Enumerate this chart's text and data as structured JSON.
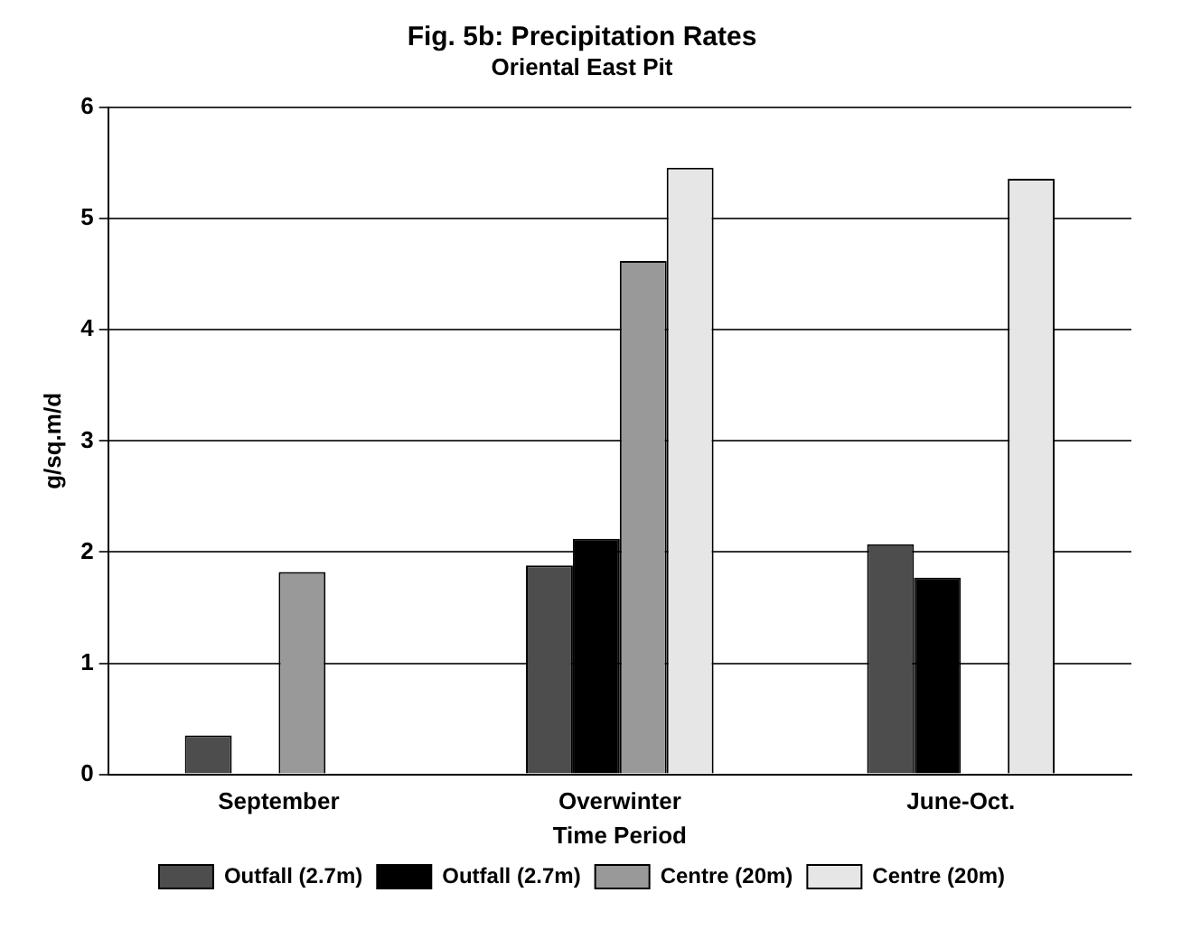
{
  "chart_data": {
    "type": "bar",
    "title": "Fig. 5b: Precipitation Rates",
    "subtitle": "Oriental East Pit",
    "xlabel": "Time Period",
    "ylabel": "g/sq.m/d",
    "categories": [
      "September",
      "Overwinter",
      "June-Oct."
    ],
    "series": [
      {
        "name": "Outfall (2.7m)",
        "color": "#4d4d4d",
        "values": [
          0.35,
          1.88,
          2.07
        ]
      },
      {
        "name": "Outfall (2.7m)",
        "color": "#000000",
        "values": [
          null,
          2.12,
          1.77
        ]
      },
      {
        "name": "Centre (20m)",
        "color": "#999999",
        "values": [
          1.82,
          4.62,
          null
        ]
      },
      {
        "name": "Centre (20m)",
        "color": "#e6e6e6",
        "values": [
          null,
          5.46,
          5.36
        ]
      }
    ],
    "ylim": [
      0,
      6
    ],
    "yticks": [
      0,
      1,
      2,
      3,
      4,
      5,
      6
    ],
    "grid": "y",
    "legend": "bottom"
  }
}
